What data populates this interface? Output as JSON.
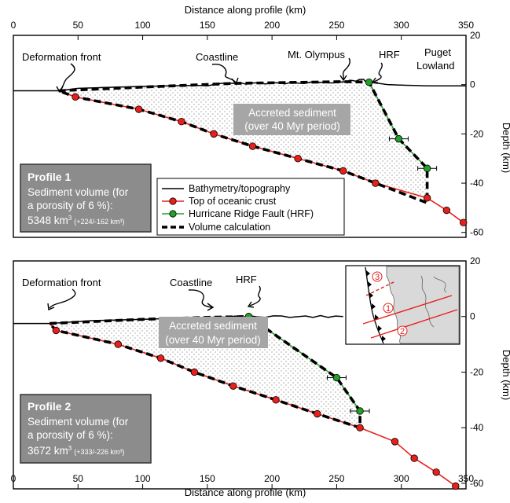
{
  "top_axis": {
    "title": "Distance along profile (km)",
    "ticks": [
      "0",
      "50",
      "100",
      "150",
      "200",
      "250",
      "300",
      "350"
    ]
  },
  "bottom_axis": {
    "title": "Distance along profile (km)",
    "ticks": [
      "0",
      "50",
      "100",
      "150",
      "200",
      "250",
      "300",
      "350"
    ]
  },
  "right_axis_label": "Depth (km)",
  "panel1": {
    "depth_ticks": [
      "20",
      "0",
      "-20",
      "-40",
      "-60"
    ],
    "labels": {
      "deformation_front": "Deformation front",
      "coastline": "Coastline",
      "mt_olympus": "Mt. Olympus",
      "hrf": "HRF",
      "puget_line1": "Puget",
      "puget_line2": "Lowland"
    },
    "sediment_line1": "Accreted sediment",
    "sediment_line2": "(over 40 Myr period)",
    "infobox": {
      "title": "Profile 1",
      "line1": "Sediment volume (for",
      "line2": "a porosity of 6 %):",
      "value": "5348 km",
      "sup": "3",
      "range": "(+224/-162 km³)"
    },
    "legend": [
      {
        "label": "Bathymetry/topography"
      },
      {
        "label": "Top of oceanic crust"
      },
      {
        "label": "Hurricane Ridge Fault (HRF)"
      },
      {
        "label": "Volume calculation"
      }
    ]
  },
  "panel2": {
    "depth_ticks": [
      "20",
      "0",
      "-20",
      "-40",
      "-60"
    ],
    "labels": {
      "deformation_front": "Deformation front",
      "coastline": "Coastline",
      "hrf": "HRF"
    },
    "sediment_line1": "Accreted sediment",
    "sediment_line2": "(over 40 Myr period)",
    "infobox": {
      "title": "Profile 2",
      "line1": "Sediment volume (for",
      "line2": "a porosity of 6 %):",
      "value": "3672 km",
      "sup": "3",
      "range": "(+333/-226 km³)"
    },
    "inset_numbers": [
      "1",
      "2",
      "3"
    ]
  },
  "colors": {
    "crust": "#e8201c",
    "hrf": "#22a02a",
    "infobox": "#8c8c8c",
    "land": "#d9d9d9"
  },
  "chart_data": [
    {
      "type": "line",
      "title": "Profile 1",
      "xlabel": "Distance along profile (km)",
      "ylabel": "Depth (km)",
      "xlim": [
        0,
        350
      ],
      "ylim": [
        -62,
        20
      ],
      "series": [
        {
          "name": "Bathymetry/topography",
          "points": [
            [
              0,
              -2.5
            ],
            [
              20,
              -2.5
            ],
            [
              35,
              -2.5
            ],
            [
              50,
              -1.5
            ],
            [
              80,
              -1
            ],
            [
              120,
              -0.5
            ],
            [
              150,
              -0.3
            ],
            [
              170,
              0.5
            ],
            [
              200,
              0.6
            ],
            [
              230,
              0.7
            ],
            [
              255,
              1.2
            ],
            [
              270,
              2
            ],
            [
              275,
              1
            ],
            [
              290,
              0
            ],
            [
              300,
              -0.2
            ],
            [
              320,
              -0.5
            ],
            [
              350,
              -0.5
            ]
          ]
        },
        {
          "name": "Top of oceanic crust",
          "points": [
            [
              35,
              -2.5
            ],
            [
              48,
              -5
            ],
            [
              97,
              -10
            ],
            [
              130,
              -15
            ],
            [
              155,
              -20
            ],
            [
              185,
              -25
            ],
            [
              220,
              -30
            ],
            [
              255,
              -35
            ],
            [
              280,
              -40
            ],
            [
              320,
              -46
            ],
            [
              335,
              -51
            ],
            [
              348,
              -56
            ]
          ]
        },
        {
          "name": "Hurricane Ridge Fault (HRF)",
          "points": [
            [
              275,
              1
            ],
            [
              298,
              -22
            ],
            [
              320,
              -34
            ]
          ]
        },
        {
          "name": "Volume calculation",
          "points": [
            [
              35,
              -2.5
            ],
            [
              100,
              -1
            ],
            [
              170,
              0.5
            ],
            [
              255,
              1.2
            ],
            [
              275,
              1
            ],
            [
              298,
              -22
            ],
            [
              320,
              -34
            ],
            [
              320,
              -48
            ],
            [
              280,
              -40
            ],
            [
              255,
              -35
            ],
            [
              220,
              -30
            ],
            [
              185,
              -25
            ],
            [
              155,
              -20
            ],
            [
              130,
              -15
            ],
            [
              97,
              -10
            ],
            [
              48,
              -5
            ],
            [
              35,
              -2.5
            ]
          ]
        }
      ]
    },
    {
      "type": "line",
      "title": "Profile 2",
      "xlabel": "Distance along profile (km)",
      "ylabel": "Depth (km)",
      "xlim": [
        0,
        350
      ],
      "ylim": [
        -62,
        20
      ],
      "series": [
        {
          "name": "Bathymetry/topography",
          "points": [
            [
              0,
              -2.5
            ],
            [
              28,
              -2.5
            ],
            [
              60,
              -1.5
            ],
            [
              100,
              -1
            ],
            [
              150,
              -0.3
            ],
            [
              182,
              0
            ],
            [
              220,
              0
            ],
            [
              255,
              0
            ]
          ]
        },
        {
          "name": "Top of oceanic crust",
          "points": [
            [
              28,
              -2.5
            ],
            [
              33,
              -5
            ],
            [
              81,
              -10
            ],
            [
              114,
              -15
            ],
            [
              140,
              -20
            ],
            [
              170,
              -25
            ],
            [
              203,
              -30
            ],
            [
              235,
              -35
            ],
            [
              268,
              -40
            ],
            [
              295,
              -45
            ],
            [
              310,
              -51
            ],
            [
              327,
              -56
            ],
            [
              342,
              -61
            ]
          ]
        },
        {
          "name": "Hurricane Ridge Fault (HRF)",
          "points": [
            [
              182,
              0
            ],
            [
              250,
              -22
            ],
            [
              268,
              -34
            ]
          ]
        },
        {
          "name": "Volume calculation",
          "points": [
            [
              28,
              -2.5
            ],
            [
              100,
              -1
            ],
            [
              150,
              -0.3
            ],
            [
              182,
              0
            ],
            [
              250,
              -22
            ],
            [
              268,
              -34
            ],
            [
              268,
              -40
            ],
            [
              235,
              -35
            ],
            [
              203,
              -30
            ],
            [
              170,
              -25
            ],
            [
              140,
              -20
            ],
            [
              114,
              -15
            ],
            [
              81,
              -10
            ],
            [
              33,
              -5
            ],
            [
              28,
              -2.5
            ]
          ]
        }
      ]
    }
  ]
}
